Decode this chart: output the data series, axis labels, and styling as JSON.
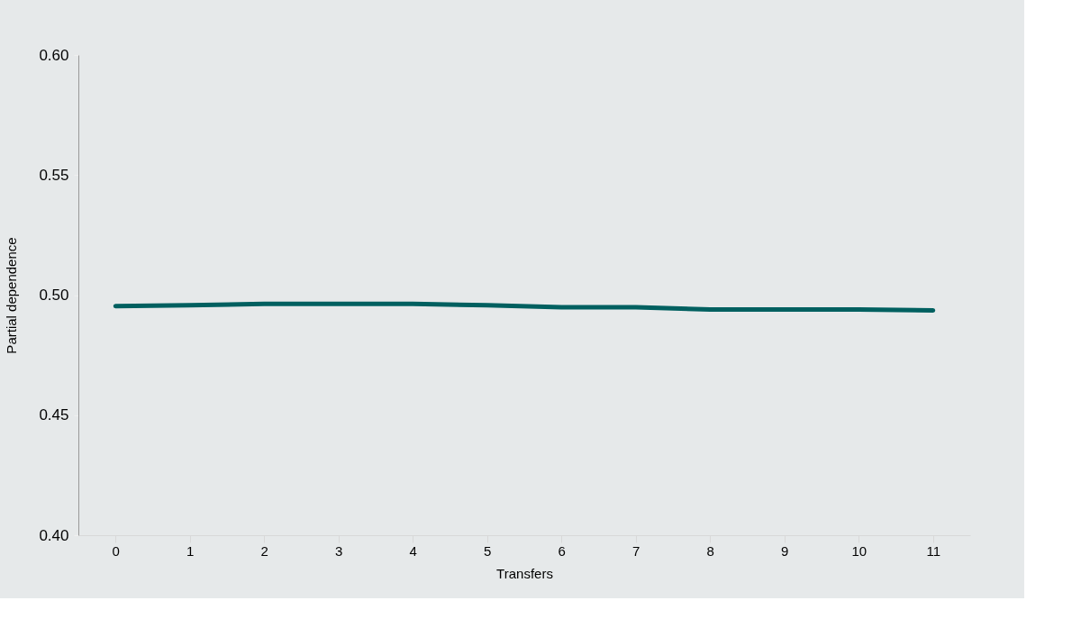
{
  "chart_data": {
    "type": "line",
    "xlabel": "Transfers",
    "ylabel": "Partial dependence",
    "categories": [
      "0",
      "1",
      "2",
      "3",
      "4",
      "5",
      "6",
      "7",
      "8",
      "9",
      "10",
      "11"
    ],
    "series": [
      {
        "color": "#006060",
        "values": [
          0.4954,
          0.4958,
          0.4963,
          0.4963,
          0.4963,
          0.4958,
          0.4949,
          0.4949,
          0.494,
          0.494,
          0.494,
          0.4936
        ]
      }
    ],
    "ylim": [
      0.4,
      0.6
    ],
    "yticks": [
      {
        "value": 0.4,
        "label": "0.40"
      },
      {
        "value": 0.45,
        "label": "0.45"
      },
      {
        "value": 0.5,
        "label": "0.50"
      },
      {
        "value": 0.55,
        "label": "0.55"
      },
      {
        "value": 0.6,
        "label": "0.60"
      }
    ],
    "grid": false,
    "legend": false,
    "marker": "none",
    "line_style": "solid"
  }
}
